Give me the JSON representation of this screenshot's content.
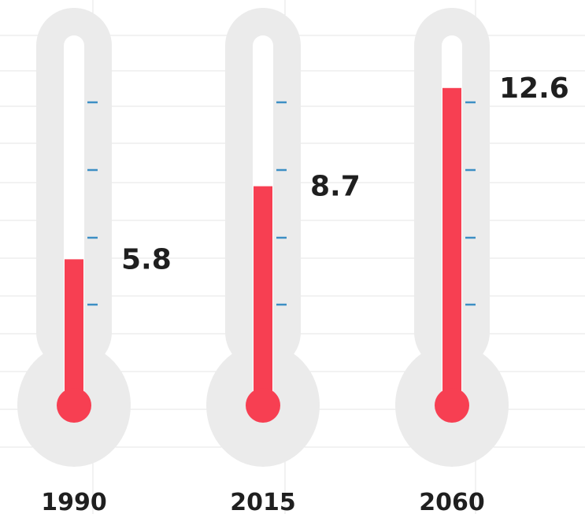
{
  "chart_data": {
    "type": "bar",
    "style": "thermometer",
    "categories": [
      "1990",
      "2015",
      "2060"
    ],
    "values": [
      5.8,
      8.7,
      12.6
    ],
    "value_labels": [
      "5.8",
      "8.7",
      "12.6"
    ],
    "title": "",
    "xlabel": "",
    "ylabel": "",
    "ylim": [
      0,
      13
    ],
    "grid": true,
    "colors": {
      "fill": "#f73f52",
      "tube": "#ebebeb",
      "tube_inner": "#ffffff",
      "tick": "#3d8fc4",
      "grid": "#e6e6e6"
    }
  }
}
